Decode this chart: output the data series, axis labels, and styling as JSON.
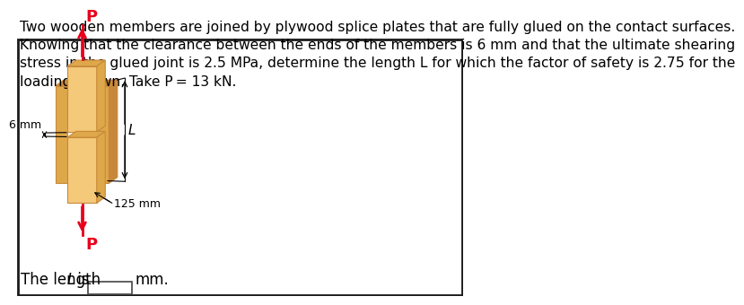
{
  "title_text": "Two wooden members are joined by plywood splice plates that are fully glued on the contact surfaces.\nKnowing that the clearance between the ends of the members is 6 mm and that the ultimate shearing\nstress in the glued joint is 2.5 MPa, determine the length L for which the factor of safety is 2.75 for the\nloading shown. Take P = 13 kN.",
  "background_color": "#ffffff",
  "wood_light": "#f5c97a",
  "wood_mid": "#dea84a",
  "wood_dark": "#c8883a",
  "wood_grain1": "#e8b45a",
  "wood_grain2": "#f0c060",
  "arrow_color": "#e8001c",
  "answer_label_normal": "The length ",
  "answer_label_italic": "L",
  "answer_label_rest": " is",
  "answer_unit": "mm.",
  "dim_125": "125 mm",
  "dim_6": "6 mm",
  "label_L": "L",
  "label_P": "P",
  "font_size_text": 11.2,
  "font_size_label": 12,
  "border_color": "#1a1a1a"
}
